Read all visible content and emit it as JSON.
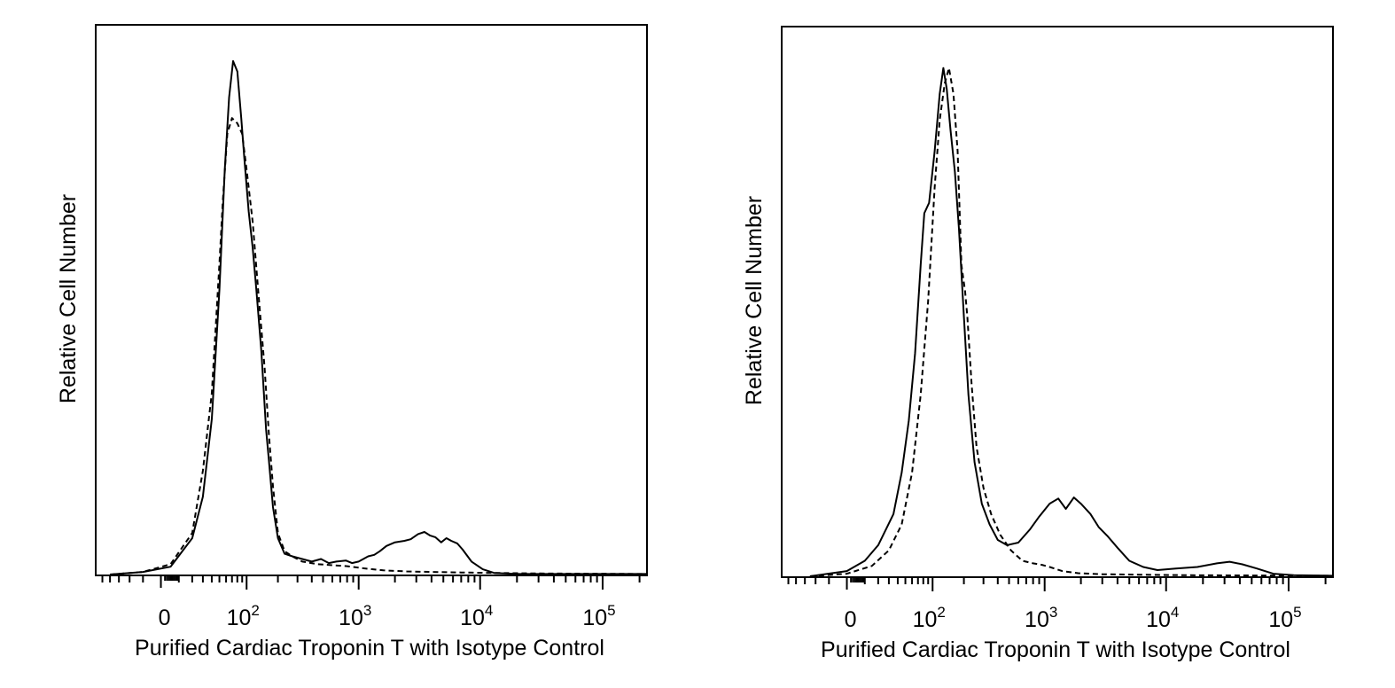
{
  "chart_data": [
    {
      "type": "line",
      "title": "",
      "xlabel": "Purified Cardiac Troponin T with Isotype Control",
      "ylabel": "Relative Cell Number",
      "x_scale": "biexponential",
      "y_tick_labels": false,
      "xlim": [
        -60,
        230000
      ],
      "ylim": [
        0,
        1
      ],
      "grid": false,
      "legend": "none",
      "x_tick_labels": [
        {
          "value": 0,
          "base": "0",
          "exp": ""
        },
        {
          "value": 100,
          "base": "10",
          "exp": "2"
        },
        {
          "value": 1000,
          "base": "10",
          "exp": "3"
        },
        {
          "value": 10000,
          "base": "10",
          "exp": "4"
        },
        {
          "value": 100000,
          "base": "10",
          "exp": "5"
        }
      ],
      "series": [
        {
          "style": "solid",
          "points": [
            [
              -40,
              0
            ],
            [
              -10,
              0.005
            ],
            [
              5,
              0.015
            ],
            [
              20,
              0.07
            ],
            [
              30,
              0.15
            ],
            [
              40,
              0.3
            ],
            [
              50,
              0.55
            ],
            [
              58,
              0.78
            ],
            [
              65,
              0.92
            ],
            [
              72,
              0.99
            ],
            [
              80,
              0.97
            ],
            [
              88,
              0.88
            ],
            [
              95,
              0.8
            ],
            [
              105,
              0.7
            ],
            [
              115,
              0.63
            ],
            [
              125,
              0.55
            ],
            [
              140,
              0.43
            ],
            [
              155,
              0.28
            ],
            [
              165,
              0.22
            ],
            [
              180,
              0.13
            ],
            [
              200,
              0.07
            ],
            [
              230,
              0.04
            ],
            [
              270,
              0.035
            ],
            [
              330,
              0.03
            ],
            [
              400,
              0.025
            ],
            [
              480,
              0.03
            ],
            [
              560,
              0.022
            ],
            [
              650,
              0.025
            ],
            [
              780,
              0.027
            ],
            [
              880,
              0.022
            ],
            [
              1000,
              0.025
            ],
            [
              1200,
              0.035
            ],
            [
              1350,
              0.038
            ],
            [
              1500,
              0.045
            ],
            [
              1700,
              0.055
            ],
            [
              2000,
              0.062
            ],
            [
              2400,
              0.065
            ],
            [
              2700,
              0.068
            ],
            [
              3100,
              0.078
            ],
            [
              3500,
              0.082
            ],
            [
              3900,
              0.075
            ],
            [
              4300,
              0.072
            ],
            [
              4800,
              0.062
            ],
            [
              5300,
              0.07
            ],
            [
              5800,
              0.065
            ],
            [
              6500,
              0.06
            ],
            [
              7200,
              0.048
            ],
            [
              8500,
              0.025
            ],
            [
              10500,
              0.01
            ],
            [
              13000,
              0.003
            ],
            [
              20000,
              0.001
            ],
            [
              60000,
              0.001
            ],
            [
              230000,
              0.001
            ]
          ]
        },
        {
          "style": "dashed",
          "points": [
            [
              -40,
              0
            ],
            [
              -10,
              0.005
            ],
            [
              5,
              0.02
            ],
            [
              20,
              0.08
            ],
            [
              30,
              0.2
            ],
            [
              40,
              0.35
            ],
            [
              50,
              0.6
            ],
            [
              55,
              0.72
            ],
            [
              62,
              0.85
            ],
            [
              70,
              0.88
            ],
            [
              80,
              0.87
            ],
            [
              90,
              0.85
            ],
            [
              100,
              0.78
            ],
            [
              115,
              0.68
            ],
            [
              130,
              0.55
            ],
            [
              150,
              0.4
            ],
            [
              165,
              0.27
            ],
            [
              180,
              0.17
            ],
            [
              200,
              0.08
            ],
            [
              230,
              0.045
            ],
            [
              270,
              0.035
            ],
            [
              330,
              0.025
            ],
            [
              450,
              0.02
            ],
            [
              600,
              0.018
            ],
            [
              800,
              0.016
            ],
            [
              1100,
              0.012
            ],
            [
              1600,
              0.008
            ],
            [
              2500,
              0.006
            ],
            [
              4000,
              0.005
            ],
            [
              7000,
              0.004
            ],
            [
              13000,
              0.003
            ],
            [
              30000,
              0.002
            ],
            [
              230000,
              0.001
            ]
          ]
        }
      ]
    },
    {
      "type": "line",
      "title": "",
      "xlabel": "Purified Cardiac Troponin T with Isotype Control",
      "ylabel": "Relative Cell Number",
      "x_scale": "biexponential",
      "y_tick_labels": false,
      "xlim": [
        -60,
        230000
      ],
      "ylim": [
        0,
        1
      ],
      "grid": false,
      "legend": "none",
      "x_tick_labels": [
        {
          "value": 0,
          "base": "0",
          "exp": ""
        },
        {
          "value": 100,
          "base": "10",
          "exp": "2"
        },
        {
          "value": 1000,
          "base": "10",
          "exp": "3"
        },
        {
          "value": 10000,
          "base": "10",
          "exp": "4"
        },
        {
          "value": 100000,
          "base": "10",
          "exp": "5"
        }
      ],
      "series": [
        {
          "style": "solid",
          "points": [
            [
              -25,
              0
            ],
            [
              0,
              0.01
            ],
            [
              10,
              0.03
            ],
            [
              20,
              0.06
            ],
            [
              35,
              0.12
            ],
            [
              45,
              0.2
            ],
            [
              55,
              0.3
            ],
            [
              65,
              0.43
            ],
            [
              75,
              0.6
            ],
            [
              82,
              0.7
            ],
            [
              92,
              0.72
            ],
            [
              105,
              0.82
            ],
            [
              118,
              0.93
            ],
            [
              128,
              0.98
            ],
            [
              138,
              0.94
            ],
            [
              150,
              0.86
            ],
            [
              165,
              0.78
            ],
            [
              180,
              0.67
            ],
            [
              200,
              0.5
            ],
            [
              220,
              0.35
            ],
            [
              250,
              0.22
            ],
            [
              290,
              0.14
            ],
            [
              340,
              0.1
            ],
            [
              400,
              0.07
            ],
            [
              480,
              0.06
            ],
            [
              600,
              0.065
            ],
            [
              750,
              0.09
            ],
            [
              900,
              0.115
            ],
            [
              1100,
              0.14
            ],
            [
              1300,
              0.15
            ],
            [
              1500,
              0.13
            ],
            [
              1750,
              0.152
            ],
            [
              2000,
              0.14
            ],
            [
              2400,
              0.12
            ],
            [
              2800,
              0.095
            ],
            [
              3300,
              0.078
            ],
            [
              4000,
              0.055
            ],
            [
              5000,
              0.03
            ],
            [
              6500,
              0.018
            ],
            [
              8500,
              0.012
            ],
            [
              12000,
              0.015
            ],
            [
              18000,
              0.018
            ],
            [
              26000,
              0.025
            ],
            [
              33000,
              0.028
            ],
            [
              42000,
              0.023
            ],
            [
              55000,
              0.015
            ],
            [
              75000,
              0.005
            ],
            [
              110000,
              0.002
            ],
            [
              230000,
              0.001
            ]
          ]
        },
        {
          "style": "dashed",
          "points": [
            [
              -25,
              0
            ],
            [
              0,
              0.005
            ],
            [
              15,
              0.02
            ],
            [
              30,
              0.05
            ],
            [
              45,
              0.1
            ],
            [
              60,
              0.2
            ],
            [
              75,
              0.35
            ],
            [
              90,
              0.53
            ],
            [
              105,
              0.75
            ],
            [
              118,
              0.88
            ],
            [
              132,
              0.95
            ],
            [
              145,
              0.98
            ],
            [
              160,
              0.93
            ],
            [
              175,
              0.82
            ],
            [
              190,
              0.6
            ],
            [
              205,
              0.55
            ],
            [
              215,
              0.5
            ],
            [
              235,
              0.37
            ],
            [
              260,
              0.25
            ],
            [
              300,
              0.17
            ],
            [
              350,
              0.12
            ],
            [
              420,
              0.08
            ],
            [
              520,
              0.05
            ],
            [
              650,
              0.03
            ],
            [
              800,
              0.025
            ],
            [
              950,
              0.022
            ],
            [
              1100,
              0.018
            ],
            [
              1400,
              0.01
            ],
            [
              1900,
              0.006
            ],
            [
              3000,
              0.004
            ],
            [
              6000,
              0.003
            ],
            [
              15000,
              0.002
            ],
            [
              230000,
              0.001
            ]
          ]
        }
      ]
    }
  ]
}
